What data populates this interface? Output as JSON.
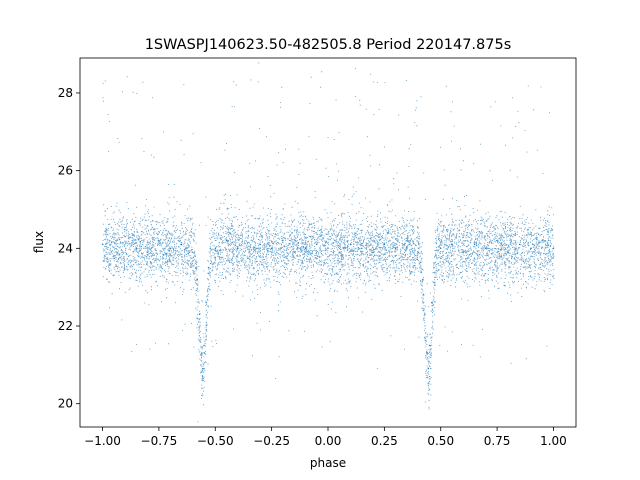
{
  "chart_data": {
    "type": "scatter",
    "title": "1SWASPJ140623.50-482505.8 Period 220147.875s",
    "xlabel": "phase",
    "ylabel": "flux",
    "xlim": [
      -1.1,
      1.1
    ],
    "ylim": [
      19.4,
      28.9
    ],
    "xticks": [
      -1.0,
      -0.75,
      -0.5,
      -0.25,
      0.0,
      0.25,
      0.5,
      0.75,
      1.0
    ],
    "xtick_labels": [
      "−1.00",
      "−0.75",
      "−0.50",
      "−0.25",
      "0.00",
      "0.25",
      "0.50",
      "0.75",
      "1.00"
    ],
    "yticks": [
      20,
      22,
      24,
      26,
      28
    ],
    "ytick_labels": [
      "20",
      "22",
      "24",
      "26",
      "28"
    ],
    "grid": false,
    "legend": "none",
    "series": [
      {
        "color": "#1f77b4",
        "marker_size": 1,
        "baseline_flux": 24.0,
        "eclipse_phases": [
          -0.555,
          0.445
        ],
        "eclipse_min_flux": 20.8,
        "points": [
          [
            -1.0,
            24.1
          ],
          [
            -0.95,
            23.8
          ],
          [
            -0.9,
            24.3
          ],
          [
            -0.85,
            24.0
          ],
          [
            -0.8,
            23.9
          ],
          [
            -0.75,
            24.2
          ],
          [
            -0.7,
            24.0
          ],
          [
            -0.65,
            24.1
          ],
          [
            -0.6,
            23.9
          ],
          [
            -0.58,
            23.2
          ],
          [
            -0.57,
            22.3
          ],
          [
            -0.56,
            21.3
          ],
          [
            -0.555,
            20.9
          ],
          [
            -0.55,
            21.5
          ],
          [
            -0.54,
            22.6
          ],
          [
            -0.53,
            23.5
          ],
          [
            -0.5,
            24.0
          ],
          [
            -0.45,
            24.2
          ],
          [
            -0.4,
            24.0
          ],
          [
            -0.35,
            23.9
          ],
          [
            -0.3,
            24.1
          ],
          [
            -0.25,
            24.0
          ],
          [
            -0.2,
            24.2
          ],
          [
            -0.15,
            23.9
          ],
          [
            -0.1,
            24.0
          ],
          [
            -0.05,
            24.1
          ],
          [
            0.0,
            24.0
          ],
          [
            0.05,
            23.9
          ],
          [
            0.1,
            24.1
          ],
          [
            0.15,
            24.0
          ],
          [
            0.2,
            23.9
          ],
          [
            0.25,
            24.1
          ],
          [
            0.3,
            24.0
          ],
          [
            0.35,
            24.2
          ],
          [
            0.4,
            23.9
          ],
          [
            0.42,
            23.2
          ],
          [
            0.43,
            22.3
          ],
          [
            0.44,
            21.3
          ],
          [
            0.445,
            20.9
          ],
          [
            0.45,
            21.5
          ],
          [
            0.46,
            22.6
          ],
          [
            0.47,
            23.5
          ],
          [
            0.5,
            24.0
          ],
          [
            0.55,
            24.1
          ],
          [
            0.6,
            23.9
          ],
          [
            0.65,
            24.1
          ],
          [
            0.7,
            24.0
          ],
          [
            0.75,
            24.2
          ],
          [
            0.8,
            23.9
          ],
          [
            0.85,
            24.1
          ],
          [
            0.9,
            24.0
          ],
          [
            0.95,
            24.2
          ],
          [
            1.0,
            24.0
          ]
        ]
      }
    ]
  }
}
